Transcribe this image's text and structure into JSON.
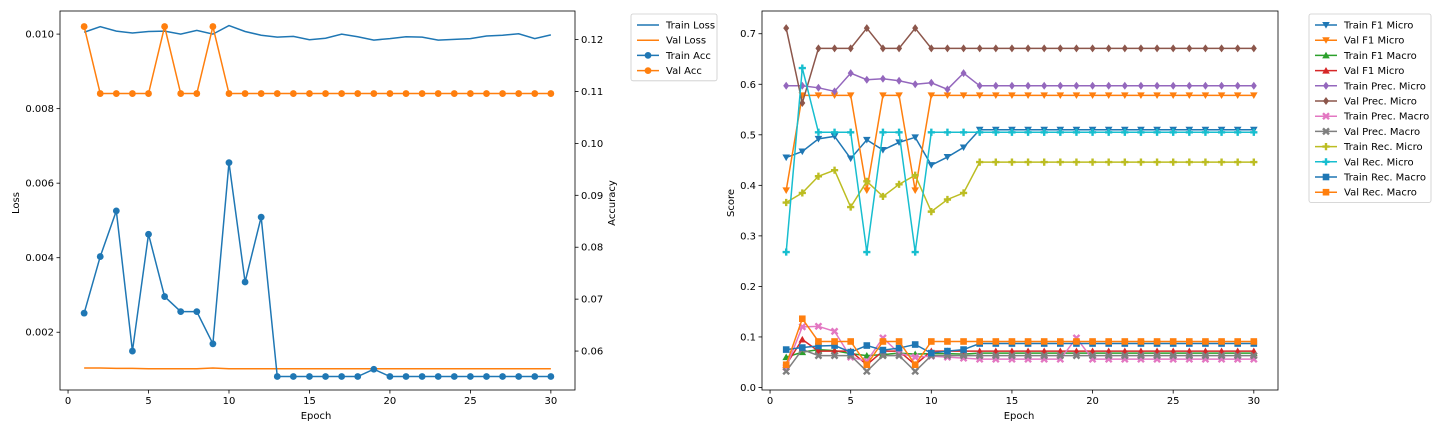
{
  "chart_data": [
    {
      "type": "line",
      "xlabel": "Epoch",
      "ylabel": "Loss",
      "y2label": "Accuracy",
      "xlim": [
        -0.5,
        31.5
      ],
      "ylim": [
        0.00045,
        0.01062
      ],
      "y2lim": [
        0.0525,
        0.1255
      ],
      "xticks": [
        0,
        5,
        10,
        15,
        20,
        25,
        30
      ],
      "yticks": [
        0.002,
        0.004,
        0.006,
        0.008,
        0.01
      ],
      "ytick_labels": [
        "0.002",
        "0.004",
        "0.006",
        "0.008",
        "0.010"
      ],
      "y2ticks": [
        0.06,
        0.07,
        0.08,
        0.09,
        0.1,
        0.11,
        0.12
      ],
      "y2tick_labels": [
        "0.06",
        "0.07",
        "0.08",
        "0.09",
        "0.10",
        "0.11",
        "0.12"
      ],
      "grid": false,
      "legend_position": "outside-right",
      "x": [
        1,
        2,
        3,
        4,
        5,
        6,
        7,
        8,
        9,
        10,
        11,
        12,
        13,
        14,
        15,
        16,
        17,
        18,
        19,
        20,
        21,
        22,
        23,
        24,
        25,
        26,
        27,
        28,
        29,
        30
      ],
      "series": [
        {
          "name": "Train Loss",
          "axis": "left",
          "color": "#1f77b4",
          "marker": "none",
          "values": [
            0.01005,
            0.0102,
            0.01008,
            0.01003,
            0.01007,
            0.01008,
            0.01,
            0.0101,
            0.01,
            0.01023,
            0.01007,
            0.00997,
            0.00992,
            0.00994,
            0.00985,
            0.00989,
            0.01,
            0.00993,
            0.00984,
            0.00988,
            0.00993,
            0.00992,
            0.00984,
            0.00986,
            0.00988,
            0.00995,
            0.00997,
            0.01001,
            0.00988,
            0.00998
          ]
        },
        {
          "name": "Val Loss",
          "axis": "left",
          "color": "#ff7f0e",
          "marker": "none",
          "values": [
            0.00104,
            0.00104,
            0.00103,
            0.00103,
            0.00102,
            0.00102,
            0.00102,
            0.00102,
            0.00104,
            0.00102,
            0.00102,
            0.00102,
            0.00102,
            0.00102,
            0.00102,
            0.00102,
            0.00102,
            0.00102,
            0.00102,
            0.00102,
            0.00102,
            0.00102,
            0.00102,
            0.00102,
            0.00102,
            0.00102,
            0.00102,
            0.00102,
            0.00102,
            0.00102
          ]
        },
        {
          "name": "Train Acc",
          "axis": "right",
          "color": "#1f77b4",
          "marker": "circle",
          "values": [
            0.0673,
            0.0782,
            0.087,
            0.06,
            0.0825,
            0.0705,
            0.0676,
            0.0676,
            0.0614,
            0.0963,
            0.0733,
            0.0858,
            0.0551,
            0.0551,
            0.0551,
            0.0551,
            0.0551,
            0.0551,
            0.0565,
            0.0551,
            0.0551,
            0.0551,
            0.0551,
            0.0551,
            0.0551,
            0.0551,
            0.0551,
            0.0551,
            0.0551,
            0.0551
          ]
        },
        {
          "name": "Val Acc",
          "axis": "right",
          "color": "#ff7f0e",
          "marker": "circle",
          "values": [
            0.1225,
            0.1096,
            0.1096,
            0.1096,
            0.1096,
            0.1225,
            0.1096,
            0.1096,
            0.1225,
            0.1096,
            0.1096,
            0.1096,
            0.1096,
            0.1096,
            0.1096,
            0.1096,
            0.1096,
            0.1096,
            0.1096,
            0.1096,
            0.1096,
            0.1096,
            0.1096,
            0.1096,
            0.1096,
            0.1096,
            0.1096,
            0.1096,
            0.1096,
            0.1096
          ]
        }
      ]
    },
    {
      "type": "line",
      "xlabel": "Epoch",
      "ylabel": "Score",
      "xlim": [
        -0.5,
        31.5
      ],
      "ylim": [
        -0.005,
        0.745
      ],
      "xticks": [
        0,
        5,
        10,
        15,
        20,
        25,
        30
      ],
      "yticks": [
        0.0,
        0.1,
        0.2,
        0.3,
        0.4,
        0.5,
        0.6,
        0.7
      ],
      "ytick_labels": [
        "0.0",
        "0.1",
        "0.2",
        "0.3",
        "0.4",
        "0.5",
        "0.6",
        "0.7"
      ],
      "grid": false,
      "legend_position": "outside-right",
      "x": [
        1,
        2,
        3,
        4,
        5,
        6,
        7,
        8,
        9,
        10,
        11,
        12,
        13,
        14,
        15,
        16,
        17,
        18,
        19,
        20,
        21,
        22,
        23,
        24,
        25,
        26,
        27,
        28,
        29,
        30
      ],
      "series": [
        {
          "name": "Train F1 Micro",
          "color": "#1f77b4",
          "marker": "tri_down",
          "values": [
            0.455,
            0.467,
            0.492,
            0.497,
            0.453,
            0.49,
            0.47,
            0.485,
            0.495,
            0.44,
            0.456,
            0.475,
            0.51,
            0.51,
            0.51,
            0.51,
            0.51,
            0.51,
            0.51,
            0.51,
            0.51,
            0.51,
            0.51,
            0.51,
            0.51,
            0.51,
            0.51,
            0.51,
            0.51,
            0.51
          ]
        },
        {
          "name": "Val F1 Micro",
          "color": "#ff7f0e",
          "marker": "tri_down",
          "values": [
            0.39,
            0.578,
            0.578,
            0.578,
            0.578,
            0.39,
            0.578,
            0.578,
            0.39,
            0.578,
            0.578,
            0.578,
            0.578,
            0.578,
            0.578,
            0.578,
            0.578,
            0.578,
            0.578,
            0.578,
            0.578,
            0.578,
            0.578,
            0.578,
            0.578,
            0.578,
            0.578,
            0.578,
            0.578,
            0.578
          ]
        },
        {
          "name": "Train F1 Macro",
          "color": "#2ca02c",
          "marker": "tri_up",
          "values": [
            0.06,
            0.07,
            0.075,
            0.073,
            0.067,
            0.063,
            0.065,
            0.068,
            0.066,
            0.067,
            0.067,
            0.066,
            0.068,
            0.068,
            0.068,
            0.068,
            0.068,
            0.068,
            0.068,
            0.068,
            0.068,
            0.068,
            0.068,
            0.068,
            0.068,
            0.068,
            0.068,
            0.068,
            0.068,
            0.068
          ]
        },
        {
          "name": "Val F1 Micro",
          "color": "#d62728",
          "marker": "tri_up",
          "values": [
            0.045,
            0.095,
            0.072,
            0.072,
            0.072,
            0.045,
            0.072,
            0.072,
            0.045,
            0.072,
            0.072,
            0.072,
            0.072,
            0.072,
            0.072,
            0.072,
            0.072,
            0.072,
            0.072,
            0.072,
            0.072,
            0.072,
            0.072,
            0.072,
            0.072,
            0.072,
            0.072,
            0.072,
            0.072,
            0.072
          ]
        },
        {
          "name": "Train Prec. Micro",
          "color": "#9467bd",
          "marker": "diamond",
          "values": [
            0.597,
            0.597,
            0.593,
            0.586,
            0.622,
            0.609,
            0.611,
            0.607,
            0.6,
            0.603,
            0.59,
            0.622,
            0.597,
            0.597,
            0.597,
            0.597,
            0.597,
            0.597,
            0.597,
            0.597,
            0.597,
            0.597,
            0.597,
            0.597,
            0.597,
            0.597,
            0.597,
            0.597,
            0.597,
            0.597
          ]
        },
        {
          "name": "Val Prec. Micro",
          "color": "#8c564b",
          "marker": "diamond",
          "values": [
            0.711,
            0.563,
            0.671,
            0.671,
            0.671,
            0.711,
            0.671,
            0.671,
            0.711,
            0.671,
            0.671,
            0.671,
            0.671,
            0.671,
            0.671,
            0.671,
            0.671,
            0.671,
            0.671,
            0.671,
            0.671,
            0.671,
            0.671,
            0.671,
            0.671,
            0.671,
            0.671,
            0.671,
            0.671,
            0.671
          ]
        },
        {
          "name": "Train Prec. Macro",
          "color": "#e377c2",
          "marker": "x",
          "values": [
            0.04,
            0.12,
            0.121,
            0.111,
            0.06,
            0.052,
            0.098,
            0.068,
            0.06,
            0.062,
            0.06,
            0.058,
            0.056,
            0.056,
            0.056,
            0.056,
            0.056,
            0.056,
            0.098,
            0.056,
            0.056,
            0.056,
            0.056,
            0.056,
            0.056,
            0.056,
            0.056,
            0.056,
            0.056,
            0.056
          ]
        },
        {
          "name": "Val Prec. Macro",
          "color": "#7f7f7f",
          "marker": "x",
          "values": [
            0.032,
            0.075,
            0.063,
            0.063,
            0.063,
            0.032,
            0.063,
            0.063,
            0.032,
            0.063,
            0.063,
            0.063,
            0.063,
            0.063,
            0.063,
            0.063,
            0.063,
            0.063,
            0.063,
            0.063,
            0.063,
            0.063,
            0.063,
            0.063,
            0.063,
            0.063,
            0.063,
            0.063,
            0.063,
            0.063
          ]
        },
        {
          "name": "Train Rec. Micro",
          "color": "#bcbd22",
          "marker": "plus",
          "values": [
            0.366,
            0.385,
            0.418,
            0.43,
            0.357,
            0.408,
            0.378,
            0.402,
            0.42,
            0.348,
            0.372,
            0.385,
            0.446,
            0.446,
            0.446,
            0.446,
            0.446,
            0.446,
            0.446,
            0.446,
            0.446,
            0.446,
            0.446,
            0.446,
            0.446,
            0.446,
            0.446,
            0.446,
            0.446,
            0.446
          ]
        },
        {
          "name": "Val Rec. Micro",
          "color": "#17becf",
          "marker": "plus",
          "values": [
            0.268,
            0.632,
            0.505,
            0.505,
            0.505,
            0.268,
            0.505,
            0.505,
            0.268,
            0.505,
            0.505,
            0.505,
            0.505,
            0.505,
            0.505,
            0.505,
            0.505,
            0.505,
            0.505,
            0.505,
            0.505,
            0.505,
            0.505,
            0.505,
            0.505,
            0.505,
            0.505,
            0.505,
            0.505,
            0.505
          ]
        },
        {
          "name": "Train Rec. Macro",
          "color": "#1f77b4",
          "marker": "square",
          "values": [
            0.075,
            0.079,
            0.082,
            0.083,
            0.07,
            0.083,
            0.074,
            0.078,
            0.085,
            0.068,
            0.072,
            0.075,
            0.087,
            0.087,
            0.087,
            0.087,
            0.087,
            0.087,
            0.087,
            0.087,
            0.087,
            0.087,
            0.087,
            0.087,
            0.087,
            0.087,
            0.087,
            0.087,
            0.087,
            0.087
          ]
        },
        {
          "name": "Val Rec. Macro",
          "color": "#ff7f0e",
          "marker": "square",
          "values": [
            0.045,
            0.136,
            0.091,
            0.091,
            0.091,
            0.045,
            0.091,
            0.091,
            0.045,
            0.091,
            0.091,
            0.091,
            0.091,
            0.091,
            0.091,
            0.091,
            0.091,
            0.091,
            0.091,
            0.091,
            0.091,
            0.091,
            0.091,
            0.091,
            0.091,
            0.091,
            0.091,
            0.091,
            0.091,
            0.091
          ]
        }
      ]
    }
  ]
}
